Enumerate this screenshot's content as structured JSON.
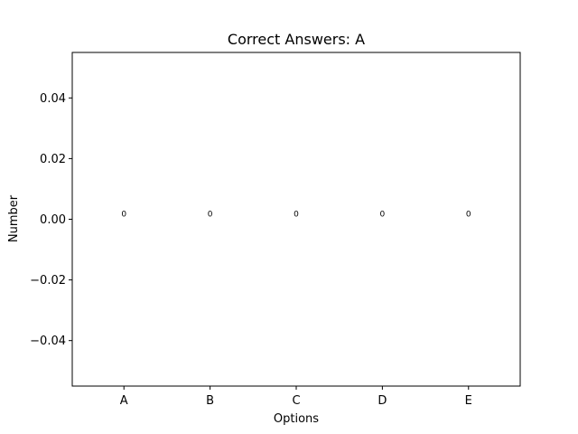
{
  "chart_data": {
    "type": "bar",
    "title": "Correct Answers: A",
    "xlabel": "Options",
    "ylabel": "Number",
    "categories": [
      "A",
      "B",
      "C",
      "D",
      "E"
    ],
    "values": [
      0,
      0,
      0,
      0,
      0
    ],
    "data_labels": [
      "0",
      "0",
      "0",
      "0",
      "0"
    ],
    "yticks": [
      -0.04,
      -0.02,
      0.0,
      0.02,
      0.04
    ],
    "ytick_labels": [
      "−0.04",
      "−0.02",
      "0.00",
      "0.02",
      "0.04"
    ],
    "ylim": [
      -0.055,
      0.055
    ],
    "grid": false,
    "colors": {
      "axis": "#000000",
      "background": "#ffffff"
    }
  }
}
